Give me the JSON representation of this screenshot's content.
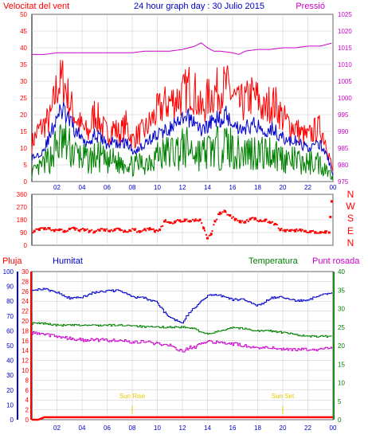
{
  "header": {
    "left_title": "Velocitat del vent",
    "center_title": "24 hour graph day : 30 Julio 2015",
    "right_title": "Pressió"
  },
  "colors": {
    "wind": "#ff0000",
    "wind_avg": "#0000cc",
    "gust_low": "#008000",
    "pressure": "#cc00cc",
    "direction": "#ff0000",
    "rain": "#ff0000",
    "humidity": "#0000cc",
    "temperature": "#008000",
    "dewpoint": "#cc00cc",
    "sun": "#e6c800",
    "axis_rain": "#ff0000",
    "axis_hum": "#0000cc",
    "axis_temp": "#008000",
    "grid": "#c8c8c8"
  },
  "legend": {
    "rain": "Pluja",
    "humidity": "Humitat",
    "temperature": "Temperatura",
    "dewpoint": "Punt rosada"
  },
  "annotations": {
    "sunrise": "Sun Rise",
    "sunset": "Sun Set",
    "sunrise_hour": 8,
    "sunset_hour": 20
  },
  "compass": [
    "N",
    "W",
    "S",
    "E",
    "N"
  ],
  "chart_data": [
    {
      "type": "line",
      "id": "wind-pressure",
      "x_ticks": [
        "02",
        "04",
        "06",
        "08",
        "10",
        "12",
        "14",
        "16",
        "18",
        "20",
        "22",
        "00"
      ],
      "y_left": {
        "label": "Velocitat del vent",
        "range": [
          0,
          50
        ],
        "ticks": [
          "0",
          "5",
          "10",
          "15",
          "20",
          "25",
          "30",
          "35",
          "40",
          "45",
          "50"
        ]
      },
      "y_right": {
        "label": "Pressió",
        "range": [
          975,
          1025
        ],
        "ticks": [
          "975",
          "980",
          "985",
          "990",
          "995",
          "1000",
          "1005",
          "1010",
          "1015",
          "1020",
          "1025"
        ]
      },
      "series": [
        {
          "key": "gust",
          "x": [
            0,
            0.5,
            1,
            1.5,
            2,
            2.5,
            3,
            3.5,
            4,
            4.5,
            5,
            5.5,
            6,
            6.5,
            7,
            7.5,
            8,
            8.5,
            9,
            9.5,
            10,
            10.5,
            11,
            11.5,
            12,
            12.5,
            13,
            13.5,
            14,
            14.5,
            15,
            15.5,
            16,
            16.5,
            17,
            17.5,
            18,
            18.5,
            19,
            19.5,
            20,
            20.5,
            21,
            21.5,
            22,
            22.5,
            23,
            23.5,
            24
          ],
          "values": [
            12,
            16,
            18,
            20,
            30,
            32,
            25,
            20,
            17,
            15,
            22,
            18,
            15,
            17,
            15,
            18,
            13,
            15,
            16,
            19,
            22,
            24,
            25,
            26,
            27,
            30,
            28,
            22,
            26,
            28,
            29,
            30,
            27,
            24,
            25,
            27,
            26,
            22,
            25,
            24,
            20,
            18,
            17,
            15,
            14,
            16,
            17,
            12,
            3
          ]
        },
        {
          "key": "average",
          "x": [
            0,
            0.5,
            1,
            1.5,
            2,
            2.5,
            3,
            3.5,
            4,
            4.5,
            5,
            5.5,
            6,
            6.5,
            7,
            7.5,
            8,
            8.5,
            9,
            9.5,
            10,
            10.5,
            11,
            11.5,
            12,
            12.5,
            13,
            13.5,
            14,
            14.5,
            15,
            15.5,
            16,
            16.5,
            17,
            17.5,
            18,
            18.5,
            19,
            19.5,
            20,
            20.5,
            21,
            21.5,
            22,
            22.5,
            23,
            23.5,
            24
          ],
          "values": [
            7,
            8,
            10,
            14,
            20,
            21,
            18,
            15,
            13,
            12,
            14,
            13,
            11,
            12,
            11,
            12,
            9,
            10,
            11,
            13,
            14,
            15,
            16,
            17,
            18,
            19,
            18,
            15,
            17,
            18,
            19,
            20,
            18,
            16,
            16,
            17,
            17,
            15,
            16,
            15,
            13,
            12,
            12,
            11,
            10,
            11,
            11,
            8,
            2
          ]
        },
        {
          "key": "minimum",
          "x": [
            0,
            0.5,
            1,
            1.5,
            2,
            2.5,
            3,
            3.5,
            4,
            4.5,
            5,
            5.5,
            6,
            6.5,
            7,
            7.5,
            8,
            8.5,
            9,
            9.5,
            10,
            10.5,
            11,
            11.5,
            12,
            12.5,
            13,
            13.5,
            14,
            14.5,
            15,
            15.5,
            16,
            16.5,
            17,
            17.5,
            18,
            18.5,
            19,
            19.5,
            20,
            20.5,
            21,
            21.5,
            22,
            22.5,
            23,
            23.5,
            24
          ],
          "values": [
            3,
            4,
            6,
            8,
            12,
            13,
            11,
            9,
            8,
            7,
            8,
            8,
            6,
            7,
            6,
            7,
            5,
            6,
            6,
            8,
            9,
            9,
            10,
            10,
            11,
            11,
            10,
            9,
            10,
            11,
            11,
            12,
            11,
            9,
            10,
            10,
            10,
            9,
            10,
            9,
            8,
            7,
            7,
            6,
            6,
            7,
            6,
            4,
            1
          ]
        },
        {
          "key": "pressure",
          "axis": "right",
          "x": [
            0,
            1,
            2,
            3,
            4,
            5,
            6,
            7,
            8,
            9,
            10,
            11,
            12,
            13,
            13.5,
            14,
            14.5,
            15,
            16,
            16.5,
            17,
            18,
            19,
            20,
            21,
            22,
            23,
            24
          ],
          "values": [
            1013,
            1013,
            1013.5,
            1013.5,
            1013.5,
            1013.5,
            1013.5,
            1013.5,
            1013.5,
            1014,
            1014,
            1014,
            1014.5,
            1015.5,
            1016.5,
            1015,
            1014,
            1014,
            1013.5,
            1013,
            1014,
            1014.5,
            1014.5,
            1015,
            1015,
            1015.5,
            1015.5,
            1016.5
          ]
        }
      ]
    },
    {
      "type": "scatter",
      "id": "wind-direction",
      "y_range": [
        0,
        360
      ],
      "y_ticks": [
        "0",
        "90",
        "180",
        "270",
        "360"
      ],
      "series": [
        {
          "key": "direction",
          "x": [
            0.2,
            0.6,
            1,
            1.4,
            1.8,
            2.2,
            2.6,
            3,
            3.4,
            3.8,
            4.2,
            4.6,
            5,
            5.4,
            5.8,
            6.2,
            6.6,
            7,
            7.4,
            7.8,
            8.2,
            8.6,
            9,
            9.4,
            9.8,
            10.2,
            10.6,
            11,
            11.4,
            11.8,
            12.2,
            12.6,
            13,
            13.4,
            13.7,
            14,
            14.3,
            14.6,
            15,
            15.4,
            15.8,
            16.2,
            16.6,
            17,
            17.4,
            17.8,
            18.2,
            18.6,
            19,
            19.4,
            19.8,
            20.2,
            20.6,
            21,
            21.4,
            21.8,
            22.2,
            22.6,
            23,
            23.4,
            23.7,
            23.8,
            23.9
          ],
          "values": [
            100,
            110,
            115,
            120,
            105,
            110,
            100,
            115,
            120,
            105,
            110,
            100,
            95,
            105,
            110,
            100,
            108,
            112,
            100,
            105,
            110,
            95,
            112,
            120,
            100,
            110,
            170,
            160,
            165,
            175,
            180,
            170,
            175,
            180,
            120,
            50,
            80,
            170,
            230,
            240,
            210,
            180,
            170,
            165,
            185,
            190,
            175,
            180,
            160,
            150,
            110,
            100,
            105,
            100,
            110,
            100,
            95,
            92,
            90,
            90,
            90,
            200,
            310
          ]
        }
      ]
    },
    {
      "type": "line",
      "id": "humidity-temperature-rain",
      "x_ticks": [
        "02",
        "04",
        "06",
        "08",
        "10",
        "12",
        "14",
        "16",
        "18",
        "20",
        "22",
        "00"
      ],
      "y_axes": [
        {
          "label": "Pluja",
          "ticks": [
            "0",
            "2",
            "4",
            "6",
            "8",
            "10",
            "12",
            "14",
            "16",
            "18",
            "20",
            "22",
            "24",
            "26",
            "28",
            "30"
          ],
          "range": [
            0,
            30
          ]
        },
        {
          "label": "Humitat",
          "ticks": [
            "0",
            "10",
            "20",
            "30",
            "40",
            "50",
            "60",
            "70",
            "80",
            "90",
            "100"
          ],
          "range": [
            0,
            100
          ]
        },
        {
          "label": "Temperatura",
          "ticks": [
            "0",
            "5",
            "10",
            "15",
            "20",
            "25",
            "30",
            "35",
            "40"
          ],
          "range": [
            0,
            40
          ]
        }
      ],
      "series": [
        {
          "key": "humidity",
          "axis": "Humitat",
          "x": [
            0,
            1,
            2,
            3,
            4,
            5,
            6,
            7,
            8,
            9,
            10,
            10.5,
            11,
            11.5,
            12,
            12.5,
            13,
            13.5,
            14,
            15,
            16,
            17,
            18,
            18.5,
            19,
            20,
            21,
            22,
            23,
            24
          ],
          "values": [
            88,
            88,
            86,
            82,
            83,
            86,
            87,
            87,
            83,
            82,
            79,
            73,
            69,
            67,
            66,
            72,
            76,
            80,
            84,
            84,
            81,
            81,
            77,
            79,
            82,
            83,
            80,
            81,
            84,
            86
          ]
        },
        {
          "key": "temperature",
          "axis": "Temperatura",
          "x": [
            0,
            1,
            2,
            3,
            4,
            5,
            6,
            7,
            8,
            9,
            10,
            11,
            12,
            13,
            14,
            14.5,
            15,
            16,
            17,
            18,
            19,
            20,
            21,
            22,
            23,
            24
          ],
          "values": [
            26,
            26,
            25.5,
            25.5,
            25.5,
            25.5,
            25.5,
            25.5,
            25.5,
            25,
            25,
            25,
            25,
            24.5,
            23,
            23.5,
            24,
            25,
            24.5,
            24,
            24,
            23.5,
            23,
            22.5,
            22.5,
            22.5
          ]
        },
        {
          "key": "dewpoint",
          "axis": "Temperatura",
          "x": [
            0,
            1,
            2,
            3,
            4,
            5,
            6,
            7,
            8,
            9,
            10,
            11,
            12,
            12.5,
            13,
            13.5,
            14,
            15,
            16,
            17,
            18,
            19,
            20,
            21,
            22,
            23,
            24
          ],
          "values": [
            23.5,
            23,
            22.5,
            22,
            21.5,
            21.5,
            21.5,
            21.5,
            21,
            21,
            20.5,
            20,
            18.5,
            19.5,
            19.5,
            20.5,
            21,
            21,
            20.5,
            20,
            19.5,
            19.5,
            19,
            19,
            19,
            19,
            19.5
          ]
        },
        {
          "key": "rain",
          "axis": "Pluja",
          "x": [
            0,
            0.5,
            1,
            2,
            4,
            6,
            8,
            10,
            12,
            14,
            16,
            18,
            20,
            22,
            24
          ],
          "values": [
            0,
            0,
            0.5,
            0.5,
            0.5,
            0.5,
            0.5,
            0.5,
            0.5,
            0.5,
            0.5,
            0.5,
            0.5,
            0.5,
            0.5
          ]
        }
      ]
    }
  ]
}
